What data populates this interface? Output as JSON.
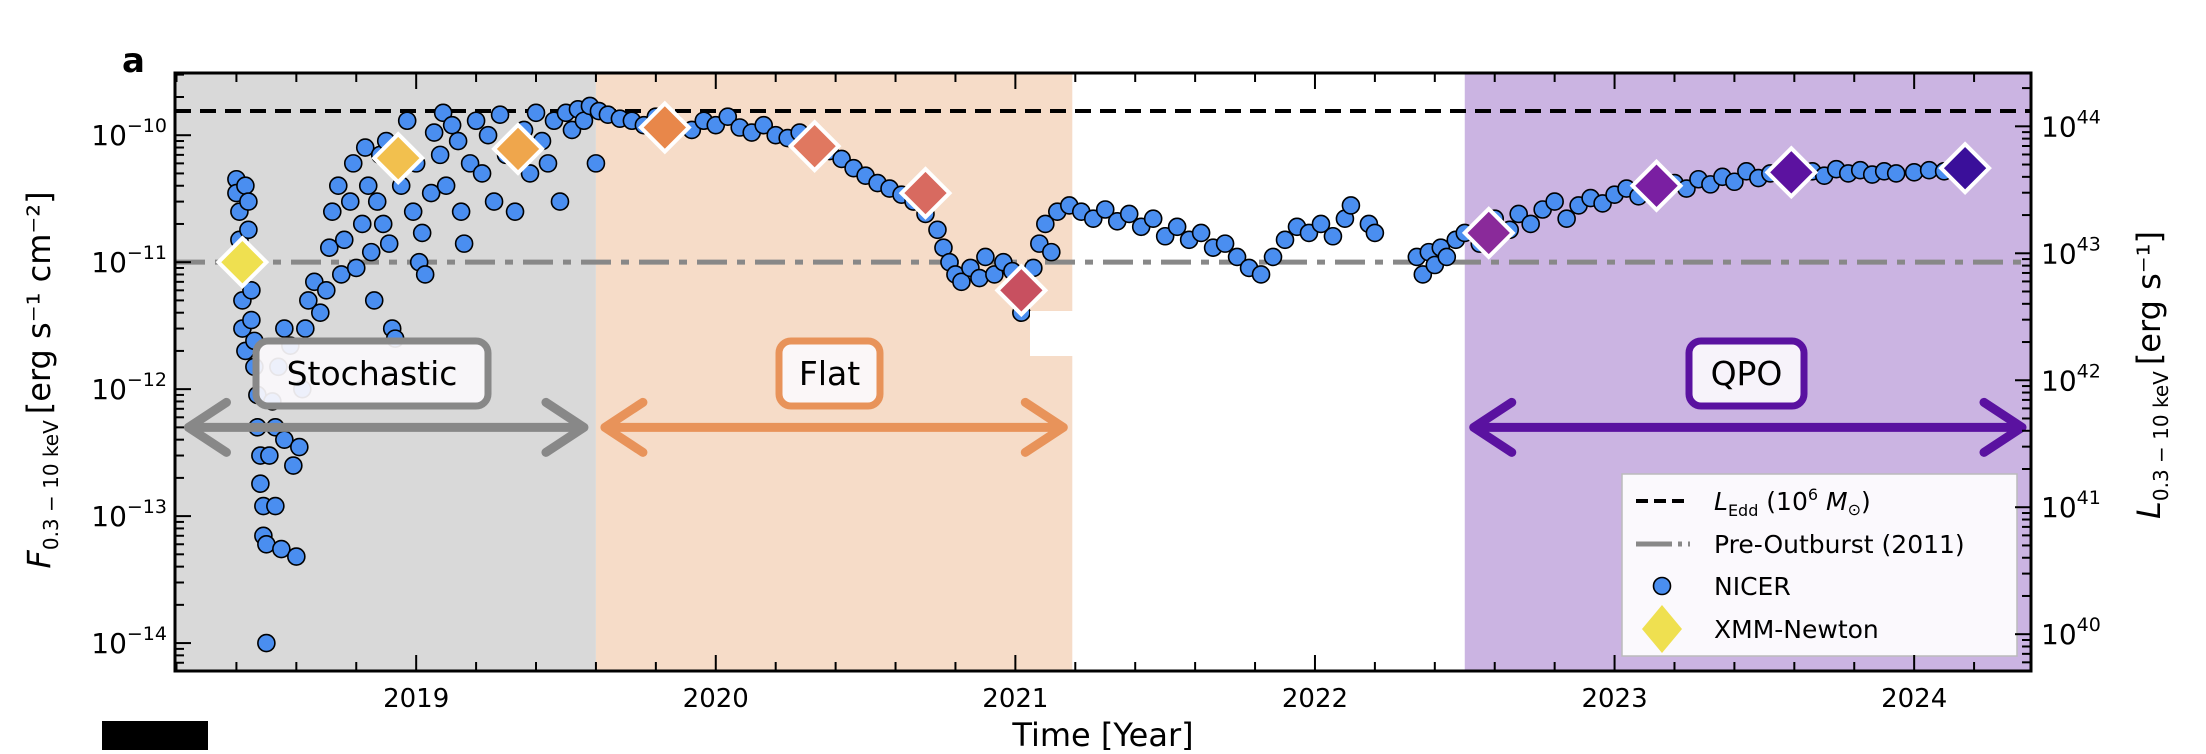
{
  "panel_label": "a",
  "chart_data": {
    "type": "scatter",
    "xlabel": "Time [Year]",
    "ylabel_left": {
      "symbol": "F",
      "subscript": "0.3 − 10 keV",
      "unit": "[erg s⁻¹ cm⁻²]"
    },
    "ylabel_right": {
      "symbol": "L",
      "subscript": "0.3 − 10 keV",
      "unit": "[erg s⁻¹]"
    },
    "xlim": [
      2018.195,
      2024.39
    ],
    "ylim_log10": [
      -14.22,
      -9.51
    ],
    "yscale": "log",
    "x_ticks": [
      2019,
      2020,
      2021,
      2022,
      2023,
      2024
    ],
    "y_ticks_left_exponents": [
      -14,
      -13,
      -12,
      -11,
      -10
    ],
    "y_ticks_right_exponents": [
      40,
      41,
      42,
      43,
      44
    ],
    "right_axis_log10_offset": 53.93,
    "regions": [
      {
        "name": "stochastic",
        "label": "Stochastic",
        "x": [
          2018.195,
          2019.6
        ],
        "fill": "#d9d9d9",
        "color": "#888888"
      },
      {
        "name": "flat",
        "label": "Flat",
        "x": [
          2019.6,
          2021.19
        ],
        "fill": "#f6dcc8",
        "color": "#e8935a"
      },
      {
        "name": "qpo",
        "label": "QPO",
        "x": [
          2022.5,
          2024.39
        ],
        "fill": "#cbb4e2",
        "color": "#5a12a0"
      }
    ],
    "arrows": [
      {
        "region": "stochastic",
        "x": [
          2018.24,
          2019.56
        ],
        "y": 5e-13,
        "color": "#888888"
      },
      {
        "region": "flat",
        "x": [
          2019.63,
          2021.16
        ],
        "y": 5e-13,
        "color": "#e8935a"
      },
      {
        "region": "qpo",
        "x": [
          2022.53,
          2024.36
        ],
        "y": 5e-13,
        "color": "#5a12a0"
      }
    ],
    "hlines": [
      {
        "name": "L_Edd",
        "y": 1.55e-10,
        "style": "dashed",
        "color": "#000000"
      },
      {
        "name": "Pre-Outburst",
        "y": 1e-11,
        "style": "dashdot",
        "color": "#888888"
      }
    ],
    "legend": {
      "placement": "lower-right",
      "entries": [
        {
          "label_main": "L",
          "label_sub": "Edd",
          "label_rest": " (10",
          "label_sup": "6",
          "label_tail": " M",
          "label_sun": "⊙",
          "label_close": ")",
          "style": "dashed"
        },
        {
          "label": "Pre-Outburst (2011)",
          "style": "dashdot"
        },
        {
          "label": "NICER",
          "style": "circle"
        },
        {
          "label": "XMM-Newton",
          "style": "diamond"
        }
      ]
    },
    "series": [
      {
        "name": "NICER",
        "color": "#4a8ef0",
        "points": [
          [
            2018.4,
            4.5e-11
          ],
          [
            2018.4,
            3.5e-11
          ],
          [
            2018.41,
            2.5e-11
          ],
          [
            2018.41,
            1.5e-11
          ],
          [
            2018.42,
            8e-12
          ],
          [
            2018.42,
            5e-12
          ],
          [
            2018.42,
            3e-12
          ],
          [
            2018.43,
            2e-12
          ],
          [
            2018.43,
            4e-11
          ],
          [
            2018.44,
            3e-11
          ],
          [
            2018.44,
            1.8e-11
          ],
          [
            2018.45,
            6e-12
          ],
          [
            2018.45,
            3.5e-12
          ],
          [
            2018.46,
            2.4e-12
          ],
          [
            2018.46,
            1.5e-12
          ],
          [
            2018.47,
            9e-13
          ],
          [
            2018.47,
            5e-13
          ],
          [
            2018.48,
            3e-13
          ],
          [
            2018.48,
            1.8e-13
          ],
          [
            2018.49,
            1.2e-13
          ],
          [
            2018.49,
            7e-14
          ],
          [
            2018.5,
            1e-14
          ],
          [
            2018.5,
            6e-14
          ],
          [
            2018.51,
            3e-13
          ],
          [
            2018.52,
            8e-13
          ],
          [
            2018.53,
            1.2e-13
          ],
          [
            2018.53,
            5e-13
          ],
          [
            2018.54,
            1.5e-12
          ],
          [
            2018.55,
            5.5e-14
          ],
          [
            2018.56,
            3e-12
          ],
          [
            2018.56,
            4e-13
          ],
          [
            2018.58,
            2.2e-12
          ],
          [
            2018.59,
            2.5e-13
          ],
          [
            2018.6,
            4.8e-14
          ],
          [
            2018.61,
            3.5e-13
          ],
          [
            2018.62,
            1e-12
          ],
          [
            2018.63,
            3e-12
          ],
          [
            2018.64,
            5e-12
          ],
          [
            2018.66,
            7e-12
          ],
          [
            2018.68,
            4e-12
          ],
          [
            2018.7,
            6e-12
          ],
          [
            2018.71,
            1.3e-11
          ],
          [
            2018.72,
            2.5e-11
          ],
          [
            2018.74,
            4e-11
          ],
          [
            2018.75,
            8e-12
          ],
          [
            2018.76,
            1.5e-11
          ],
          [
            2018.78,
            3e-11
          ],
          [
            2018.79,
            6e-11
          ],
          [
            2018.8,
            9e-12
          ],
          [
            2018.82,
            2e-11
          ],
          [
            2018.83,
            8e-11
          ],
          [
            2018.84,
            4e-11
          ],
          [
            2018.85,
            1.2e-11
          ],
          [
            2018.86,
            5e-12
          ],
          [
            2018.87,
            3e-11
          ],
          [
            2018.88,
            7e-11
          ],
          [
            2018.89,
            2e-11
          ],
          [
            2018.9,
            9e-11
          ],
          [
            2018.91,
            1.4e-11
          ],
          [
            2018.92,
            3e-12
          ],
          [
            2018.93,
            2.5e-12
          ],
          [
            2018.95,
            4e-11
          ],
          [
            2018.97,
            1.3e-10
          ],
          [
            2018.99,
            2.5e-11
          ],
          [
            2019.0,
            6e-11
          ],
          [
            2019.01,
            1e-11
          ],
          [
            2019.02,
            1.7e-11
          ],
          [
            2019.03,
            8e-12
          ],
          [
            2019.05,
            3.5e-11
          ],
          [
            2019.06,
            1.05e-10
          ],
          [
            2019.08,
            7e-11
          ],
          [
            2019.09,
            1.5e-10
          ],
          [
            2019.1,
            4e-11
          ],
          [
            2019.12,
            1.2e-10
          ],
          [
            2019.14,
            9e-11
          ],
          [
            2019.15,
            2.5e-11
          ],
          [
            2019.16,
            1.4e-11
          ],
          [
            2019.18,
            6e-11
          ],
          [
            2019.2,
            1.3e-10
          ],
          [
            2019.22,
            5e-11
          ],
          [
            2019.24,
            1e-10
          ],
          [
            2019.26,
            3e-11
          ],
          [
            2019.28,
            1.45e-10
          ],
          [
            2019.3,
            7e-11
          ],
          [
            2019.33,
            2.5e-11
          ],
          [
            2019.36,
            1.1e-10
          ],
          [
            2019.38,
            5e-11
          ],
          [
            2019.4,
            1.5e-10
          ],
          [
            2019.42,
            9e-11
          ],
          [
            2019.44,
            6e-11
          ],
          [
            2019.46,
            1.3e-10
          ],
          [
            2019.48,
            3e-11
          ],
          [
            2019.5,
            1.5e-10
          ],
          [
            2019.52,
            1.1e-10
          ],
          [
            2019.54,
            1.6e-10
          ],
          [
            2019.56,
            1.3e-10
          ],
          [
            2019.58,
            1.7e-10
          ],
          [
            2019.6,
            6e-11
          ],
          [
            2019.61,
            1.55e-10
          ],
          [
            2019.64,
            1.45e-10
          ],
          [
            2019.68,
            1.35e-10
          ],
          [
            2019.72,
            1.3e-10
          ],
          [
            2019.76,
            1.2e-10
          ],
          [
            2019.8,
            1.4e-10
          ],
          [
            2019.86,
            1.25e-10
          ],
          [
            2019.92,
            1.1e-10
          ],
          [
            2019.96,
            1.3e-10
          ],
          [
            2020.0,
            1.2e-10
          ],
          [
            2020.04,
            1.4e-10
          ],
          [
            2020.08,
            1.15e-10
          ],
          [
            2020.12,
            1.05e-10
          ],
          [
            2020.16,
            1.2e-10
          ],
          [
            2020.2,
            1e-10
          ],
          [
            2020.24,
            9.5e-11
          ],
          [
            2020.28,
            1.05e-10
          ],
          [
            2020.32,
            8.5e-11
          ],
          [
            2020.38,
            7.5e-11
          ],
          [
            2020.42,
            6.5e-11
          ],
          [
            2020.46,
            5.5e-11
          ],
          [
            2020.5,
            4.8e-11
          ],
          [
            2020.54,
            4.2e-11
          ],
          [
            2020.58,
            3.8e-11
          ],
          [
            2020.62,
            3.4e-11
          ],
          [
            2020.66,
            3e-11
          ],
          [
            2020.7,
            2.4e-11
          ],
          [
            2020.74,
            1.8e-11
          ],
          [
            2020.76,
            1.3e-11
          ],
          [
            2020.78,
            1e-11
          ],
          [
            2020.8,
            8e-12
          ],
          [
            2020.82,
            7e-12
          ],
          [
            2020.85,
            9e-12
          ],
          [
            2020.88,
            7.5e-12
          ],
          [
            2020.9,
            1.1e-11
          ],
          [
            2020.93,
            8e-12
          ],
          [
            2020.96,
            1e-11
          ],
          [
            2020.99,
            8.5e-12
          ],
          [
            2021.02,
            4e-12
          ],
          [
            2021.04,
            5.5e-12
          ],
          [
            2021.06,
            9e-12
          ],
          [
            2021.08,
            1.4e-11
          ],
          [
            2021.1,
            2e-11
          ],
          [
            2021.12,
            1.2e-11
          ],
          [
            2021.14,
            2.5e-11
          ],
          [
            2021.18,
            2.8e-11
          ],
          [
            2021.22,
            2.5e-11
          ],
          [
            2021.26,
            2.2e-11
          ],
          [
            2021.3,
            2.6e-11
          ],
          [
            2021.34,
            2.1e-11
          ],
          [
            2021.38,
            2.4e-11
          ],
          [
            2021.42,
            1.9e-11
          ],
          [
            2021.46,
            2.2e-11
          ],
          [
            2021.5,
            1.6e-11
          ],
          [
            2021.54,
            1.9e-11
          ],
          [
            2021.58,
            1.5e-11
          ],
          [
            2021.62,
            1.7e-11
          ],
          [
            2021.66,
            1.3e-11
          ],
          [
            2021.7,
            1.4e-11
          ],
          [
            2021.74,
            1.1e-11
          ],
          [
            2021.78,
            9e-12
          ],
          [
            2021.82,
            8e-12
          ],
          [
            2021.86,
            1.1e-11
          ],
          [
            2021.9,
            1.5e-11
          ],
          [
            2021.94,
            1.9e-11
          ],
          [
            2021.98,
            1.7e-11
          ],
          [
            2022.02,
            2e-11
          ],
          [
            2022.06,
            1.6e-11
          ],
          [
            2022.1,
            2.2e-11
          ],
          [
            2022.12,
            2.8e-11
          ],
          [
            2022.18,
            2e-11
          ],
          [
            2022.2,
            1.7e-11
          ],
          [
            2022.34,
            1.1e-11
          ],
          [
            2022.36,
            8e-12
          ],
          [
            2022.38,
            1.2e-11
          ],
          [
            2022.4,
            9.5e-12
          ],
          [
            2022.42,
            1.3e-11
          ],
          [
            2022.44,
            1.1e-11
          ],
          [
            2022.47,
            1.5e-11
          ],
          [
            2022.5,
            1.7e-11
          ],
          [
            2022.55,
            1.4e-11
          ],
          [
            2022.6,
            2.2e-11
          ],
          [
            2022.65,
            1.8e-11
          ],
          [
            2022.68,
            2.4e-11
          ],
          [
            2022.72,
            2e-11
          ],
          [
            2022.76,
            2.6e-11
          ],
          [
            2022.8,
            3e-11
          ],
          [
            2022.84,
            2.2e-11
          ],
          [
            2022.88,
            2.8e-11
          ],
          [
            2022.92,
            3.2e-11
          ],
          [
            2022.96,
            2.9e-11
          ],
          [
            2023.0,
            3.4e-11
          ],
          [
            2023.04,
            3.8e-11
          ],
          [
            2023.08,
            3.3e-11
          ],
          [
            2023.2,
            4.2e-11
          ],
          [
            2023.24,
            3.8e-11
          ],
          [
            2023.28,
            4.5e-11
          ],
          [
            2023.32,
            4.1e-11
          ],
          [
            2023.36,
            4.7e-11
          ],
          [
            2023.4,
            4.3e-11
          ],
          [
            2023.44,
            5.2e-11
          ],
          [
            2023.48,
            4.6e-11
          ],
          [
            2023.52,
            5e-11
          ],
          [
            2023.66,
            5.2e-11
          ],
          [
            2023.7,
            4.8e-11
          ],
          [
            2023.74,
            5.4e-11
          ],
          [
            2023.78,
            5e-11
          ],
          [
            2023.82,
            5.3e-11
          ],
          [
            2023.86,
            4.9e-11
          ],
          [
            2023.9,
            5.2e-11
          ],
          [
            2023.94,
            5e-11
          ],
          [
            2024.0,
            5.1e-11
          ],
          [
            2024.05,
            5.3e-11
          ],
          [
            2024.1,
            5.2e-11
          ],
          [
            2024.14,
            5.5e-11
          ]
        ]
      },
      {
        "name": "XMM-Newton",
        "points": [
          {
            "x": 2018.42,
            "y": 1e-11,
            "color": "#efe050"
          },
          {
            "x": 2018.94,
            "y": 6.6e-11,
            "color": "#f2c04e"
          },
          {
            "x": 2019.34,
            "y": 7.8e-11,
            "color": "#efa64c"
          },
          {
            "x": 2019.83,
            "y": 1.15e-10,
            "color": "#e8874a"
          },
          {
            "x": 2020.33,
            "y": 8.2e-11,
            "color": "#e07860"
          },
          {
            "x": 2020.7,
            "y": 3.5e-11,
            "color": "#d86a60"
          },
          {
            "x": 2021.02,
            "y": 6e-12,
            "color": "#c85060"
          },
          {
            "x": 2022.58,
            "y": 1.7e-11,
            "color": "#8a2a9a"
          },
          {
            "x": 2023.14,
            "y": 4e-11,
            "color": "#7a1fa2"
          },
          {
            "x": 2023.59,
            "y": 5.1e-11,
            "color": "#5c12a0"
          },
          {
            "x": 2024.17,
            "y": 5.5e-11,
            "color": "#3a0f9a"
          }
        ]
      }
    ]
  }
}
